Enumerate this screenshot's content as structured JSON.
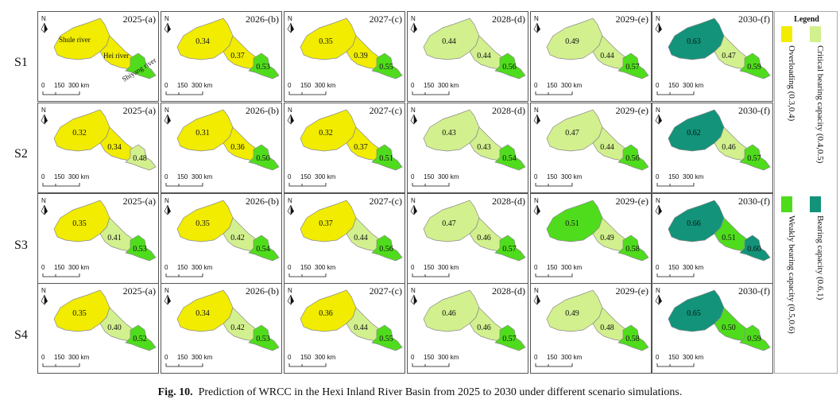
{
  "figure": {
    "caption_label": "Fig. 10.",
    "caption_text": "Prediction of WRCC in the Hexi Inland River Basin from 2025 to 2030 under different scenario simulations.",
    "panel_titles": [
      "2025-(a)",
      "2026-(b)",
      "2027-(c)",
      "2028-(d)",
      "2029-(e)",
      "2030-(f)"
    ],
    "north_label": "N",
    "scale_labels": [
      "0",
      "150",
      "300 km"
    ],
    "river_labels": [
      "Shule river",
      "Hei river",
      "Shiyang river"
    ]
  },
  "legend": {
    "title": "Legend",
    "items": [
      {
        "label": "Overloading (0.3,0.4)",
        "color": "#f1ec00"
      },
      {
        "label": "Critical bearing capacity (0.4,0.5)",
        "color": "#d2f08e"
      },
      {
        "label": "Weakly bearing capacity (0.5,0.6)",
        "color": "#4fdc1c"
      },
      {
        "label": "Bearing capacity (0.6,1)",
        "color": "#12937a"
      }
    ]
  },
  "chart_data": {
    "type": "map",
    "years": [
      "2025",
      "2026",
      "2027",
      "2028",
      "2029",
      "2030"
    ],
    "regions": [
      "Shule river",
      "Hei river",
      "Shiyang river"
    ],
    "scenarios": [
      {
        "name": "S1",
        "values": [
          [
            null,
            null,
            null
          ],
          [
            0.34,
            0.37,
            0.53
          ],
          [
            0.35,
            0.39,
            0.55
          ],
          [
            0.44,
            0.44,
            0.56
          ],
          [
            0.49,
            0.44,
            0.57
          ],
          [
            0.63,
            0.47,
            0.59
          ]
        ]
      },
      {
        "name": "S2",
        "values": [
          [
            0.32,
            0.34,
            0.48
          ],
          [
            0.31,
            0.36,
            0.5
          ],
          [
            0.32,
            0.37,
            0.51
          ],
          [
            0.43,
            0.43,
            0.54
          ],
          [
            0.47,
            0.44,
            0.56
          ],
          [
            0.62,
            0.46,
            0.57
          ]
        ]
      },
      {
        "name": "S3",
        "values": [
          [
            0.35,
            0.41,
            0.53
          ],
          [
            0.35,
            0.42,
            0.54
          ],
          [
            0.37,
            0.44,
            0.56
          ],
          [
            0.47,
            0.46,
            0.57
          ],
          [
            0.51,
            0.49,
            0.58
          ],
          [
            0.66,
            0.51,
            0.6
          ]
        ]
      },
      {
        "name": "S4",
        "values": [
          [
            0.35,
            0.4,
            0.52
          ],
          [
            0.34,
            0.42,
            0.53
          ],
          [
            0.36,
            0.44,
            0.55
          ],
          [
            0.46,
            0.46,
            0.57
          ],
          [
            0.49,
            0.48,
            0.58
          ],
          [
            0.65,
            0.5,
            0.59
          ]
        ]
      }
    ],
    "s1_2025_fill": [
      "#f1ec00",
      "#f1ec00",
      "#4fdc1c"
    ]
  }
}
